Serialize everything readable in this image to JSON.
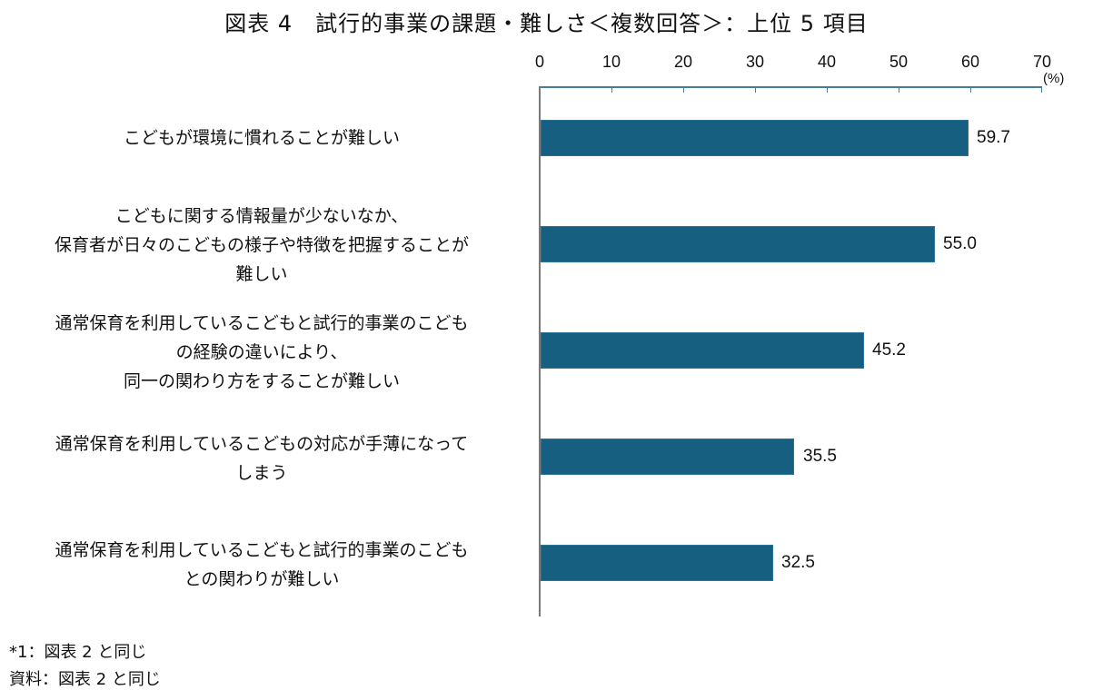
{
  "chart_data": {
    "type": "bar",
    "orientation": "horizontal",
    "title": "図表 4　試行的事業の課題・難しさ＜複数回答＞：上位 5 項目",
    "xlabel": "",
    "ylabel": "",
    "unit": "(%)",
    "xlim": [
      0,
      70
    ],
    "ticks": [
      "0",
      "10",
      "20",
      "30",
      "40",
      "50",
      "60",
      "70"
    ],
    "grid": false,
    "axis_position": "top",
    "bar_color": "#175f80",
    "categories": [
      "こどもが環境に慣れることが難しい",
      "こどもに関する情報量が少ないなか、\n保育者が日々のこどもの様子や特徴を把握することが\n難しい",
      "通常保育を利用しているこどもと試行的事業のこども\nの経験の違いにより、\n同一の関わり方をすることが難しい",
      "通常保育を利用しているこどもの対応が手薄になって\nしまう",
      "通常保育を利用しているこどもと試行的事業のこども\nとの関わりが難しい"
    ],
    "values": [
      59.7,
      55.0,
      45.2,
      35.5,
      32.5
    ],
    "value_labels": [
      "59.7",
      "55.0",
      "45.2",
      "35.5",
      "32.5"
    ]
  },
  "notes": {
    "note1": "*1：図表 2 と同じ",
    "source": "資料：図表 2 と同じ"
  }
}
